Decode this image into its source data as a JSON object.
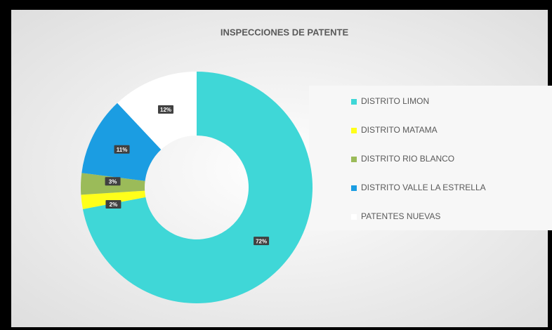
{
  "chart_data": {
    "type": "donut",
    "title": "INSPECCIONES DE PATENTE",
    "categories": [
      "DISTRITO LIMON",
      "DISTRITO MATAMA",
      "DISTRITO RIO BLANCO",
      "DISTRITO VALLE LA ESTRELLA",
      "PATENTES NUEVAS"
    ],
    "values": [
      72,
      2,
      3,
      11,
      12
    ],
    "value_labels": [
      "72%",
      "2%",
      "3%",
      "11%",
      "12%"
    ],
    "colors": [
      "#3fd7d7",
      "#ffff1a",
      "#9bbb59",
      "#1b9de2",
      "#ffffff"
    ],
    "legend": "right"
  }
}
